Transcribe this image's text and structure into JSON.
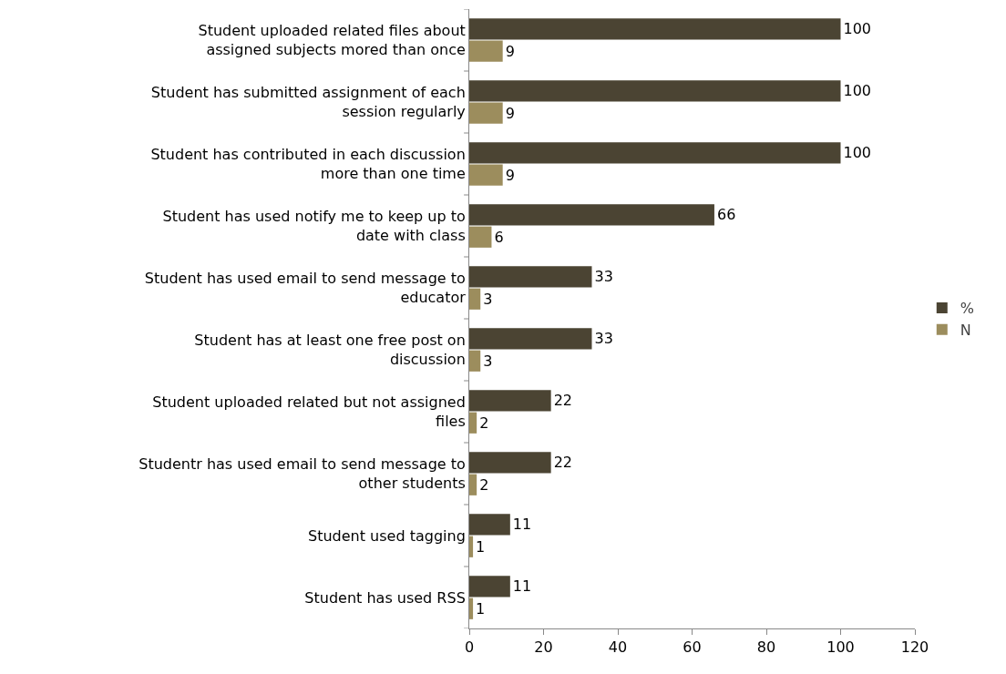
{
  "chart_data": {
    "type": "bar",
    "orientation": "horizontal",
    "categories": [
      "Student uploaded related files about assigned subjects mored than once",
      "Student has submitted assignment of each session regularly",
      "Student has contributed in each discussion more than one time",
      "Student has used notify me to keep up to date with class",
      "Student has used email to send message to educator",
      "Student has at least one free post on discussion",
      "Student uploaded related but not assigned files",
      "Studentr has used email to send message to other students",
      "Student used tagging",
      "Student has used RSS"
    ],
    "series": [
      {
        "name": "%",
        "color": "#4b4433",
        "values": [
          100,
          100,
          100,
          66,
          33,
          33,
          22,
          22,
          11,
          11
        ]
      },
      {
        "name": "N",
        "color": "#9c8d5d",
        "values": [
          9,
          9,
          9,
          6,
          3,
          3,
          2,
          2,
          1,
          1
        ]
      }
    ],
    "xlim": [
      0,
      120
    ],
    "xticks": [
      0,
      20,
      40,
      60,
      80,
      100,
      120
    ],
    "grid": false,
    "legend": "right",
    "data_labels": true
  }
}
